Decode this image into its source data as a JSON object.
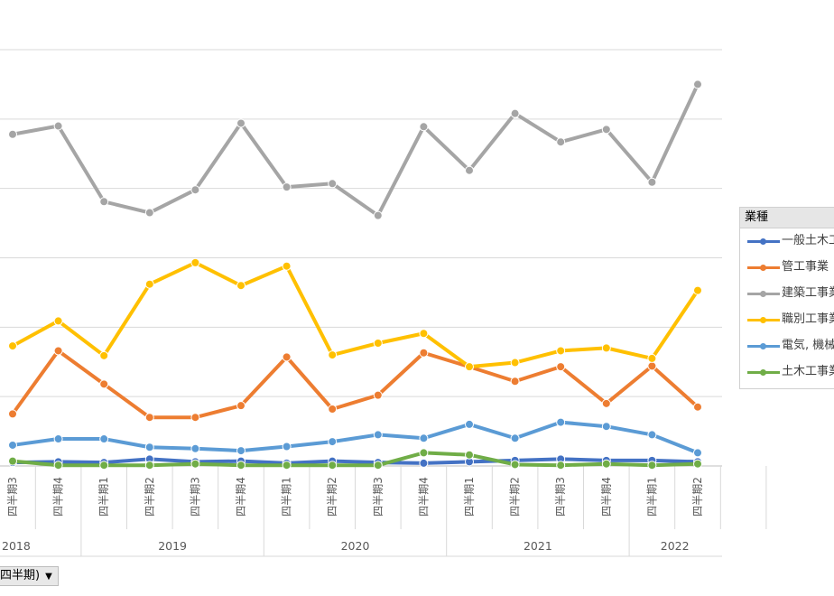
{
  "chart_data": {
    "type": "line",
    "x": [
      "四半期3",
      "四半期4",
      "四半期1",
      "四半期2",
      "四半期3",
      "四半期4",
      "四半期1",
      "四半期2",
      "四半期3",
      "四半期4",
      "四半期1",
      "四半期2",
      "四半期3",
      "四半期4",
      "四半期1",
      "四半期2"
    ],
    "year_groups": [
      {
        "label": "2018",
        "count": 2
      },
      {
        "label": "2019",
        "count": 4
      },
      {
        "label": "2020",
        "count": 4
      },
      {
        "label": "2021",
        "count": 4
      },
      {
        "label": "2022",
        "count": 2
      }
    ],
    "ylim": [
      0,
      600
    ],
    "series": [
      {
        "name": "一般土木工事業",
        "color": "#4472C4",
        "values": [
          5,
          6,
          5,
          10,
          6,
          7,
          4,
          7,
          5,
          4,
          6,
          8,
          10,
          8,
          8,
          6
        ]
      },
      {
        "name": "管工事業",
        "color": "#ED7D31",
        "values": [
          75,
          166,
          118,
          70,
          70,
          87,
          157,
          82,
          102,
          163,
          143,
          122,
          143,
          90,
          144,
          85
        ]
      },
      {
        "name": "建築工事業",
        "color": "#A5A5A5",
        "values": [
          478,
          490,
          381,
          365,
          398,
          494,
          402,
          407,
          361,
          489,
          426,
          508,
          467,
          485,
          409,
          550
        ]
      },
      {
        "name": "職別工事業",
        "color": "#FFC000",
        "values": [
          173,
          209,
          159,
          262,
          293,
          260,
          288,
          160,
          177,
          191,
          143,
          149,
          166,
          170,
          155,
          253
        ]
      },
      {
        "name": "電気, 機械器具設置工事業",
        "color": "#5B9BD5",
        "values": [
          30,
          39,
          39,
          27,
          25,
          22,
          28,
          35,
          45,
          40,
          60,
          40,
          63,
          57,
          45,
          19
        ]
      },
      {
        "name": "土木工事業",
        "color": "#70AD47",
        "values": [
          7,
          1,
          1,
          1,
          3,
          1,
          1,
          1,
          1,
          19,
          16,
          2,
          1,
          3,
          1,
          3
        ]
      }
    ]
  },
  "legend": {
    "title": "業種",
    "items": [
      "一般土木工事業",
      "管工事業",
      "建築工事業",
      "職別工事業",
      "電気, 機械器具設置工事業",
      "土木工事業"
    ]
  },
  "field_button": {
    "label": "四半期)",
    "arrow": "▼"
  }
}
